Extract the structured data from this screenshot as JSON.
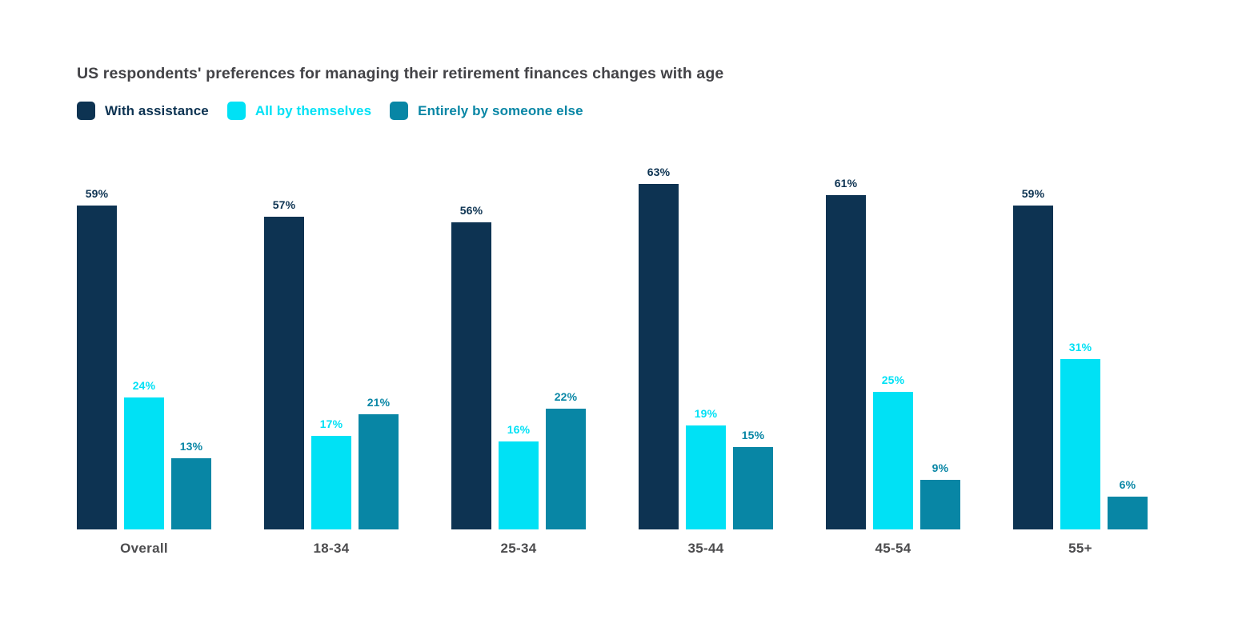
{
  "chart": {
    "title": "US respondents' preferences for managing their retirement finances changes with age"
  },
  "chart_data": {
    "type": "bar",
    "title": "US respondents' preferences for managing their retirement finances changes with age",
    "categories": [
      "Overall",
      "18-34",
      "25-34",
      "35-44",
      "45-54",
      "55+"
    ],
    "series": [
      {
        "name": "With assistance",
        "color": "#0d3352",
        "values": [
          59,
          57,
          56,
          63,
          61,
          59
        ]
      },
      {
        "name": "All by themselves",
        "color": "#00e1f5",
        "values": [
          24,
          17,
          16,
          19,
          25,
          31
        ]
      },
      {
        "name": "Entirely by someone else",
        "color": "#0886a5",
        "values": [
          13,
          21,
          22,
          15,
          9,
          6
        ]
      }
    ],
    "value_suffix": "%",
    "data_labels": true,
    "xlabel": "",
    "ylabel": "",
    "ylim": [
      0,
      63
    ],
    "grid": false,
    "axes_visible": false,
    "legend_position": "top-left",
    "background": "#ffffff",
    "title_color": "#434347",
    "category_label_color": "#4c4c4e"
  }
}
